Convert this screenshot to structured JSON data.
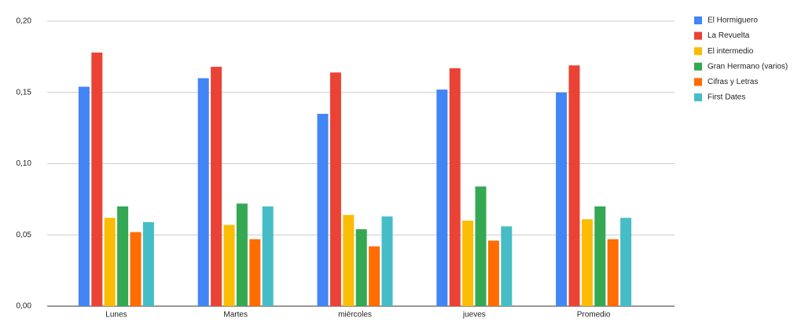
{
  "chart_data": {
    "type": "bar",
    "categories": [
      "Lunes",
      "Martes",
      "miércoles",
      "jueves",
      "Promedio"
    ],
    "series": [
      {
        "name": "El Hormiguero",
        "color": "#4285f4",
        "values": [
          0.154,
          0.16,
          0.135,
          0.152,
          0.15
        ]
      },
      {
        "name": "La Revuelta",
        "color": "#ea4335",
        "values": [
          0.178,
          0.168,
          0.164,
          0.167,
          0.169
        ]
      },
      {
        "name": "El intermedio",
        "color": "#fbbc04",
        "values": [
          0.062,
          0.057,
          0.064,
          0.06,
          0.061
        ]
      },
      {
        "name": "Gran Hermano (varios)",
        "color": "#34a853",
        "values": [
          0.07,
          0.072,
          0.054,
          0.084,
          0.07
        ]
      },
      {
        "name": "Cifras y Letras",
        "color": "#ff6d01",
        "values": [
          0.052,
          0.047,
          0.042,
          0.046,
          0.047
        ]
      },
      {
        "name": "First Dates",
        "color": "#46bdc6",
        "values": [
          0.059,
          0.07,
          0.063,
          0.056,
          0.062
        ]
      }
    ],
    "ylim": [
      0,
      0.2
    ],
    "yticks": [
      {
        "value": 0,
        "label": "0,00"
      },
      {
        "value": 0.05,
        "label": "0,05"
      },
      {
        "value": 0.1,
        "label": "0,10"
      },
      {
        "value": 0.15,
        "label": "0,15"
      },
      {
        "value": 0.2,
        "label": "0,20"
      }
    ],
    "grid": true,
    "legend": "right"
  }
}
